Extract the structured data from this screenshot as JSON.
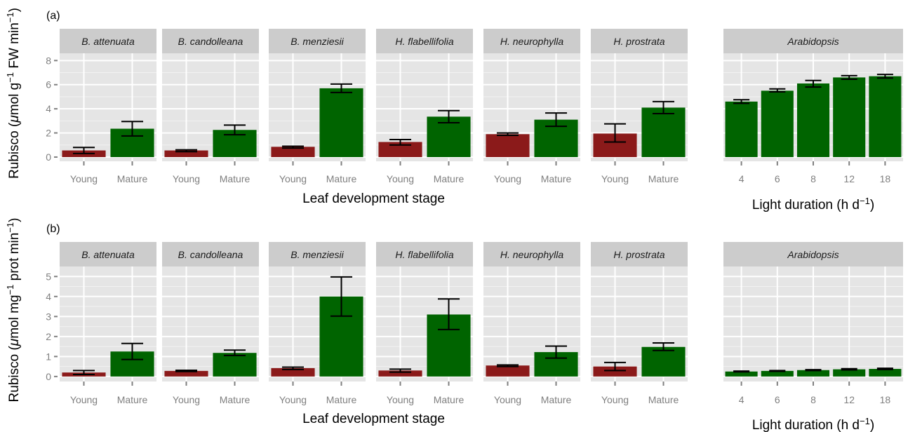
{
  "colors": {
    "young": "#8b1a1a",
    "mature": "#006400",
    "arabidopsis": "#006400"
  },
  "chart_data": [
    {
      "type": "bar",
      "tag": "(a)",
      "ylabel_prefix": "Rubisco (",
      "ylabel_mu": "μ",
      "ylabel_rest": "mol g",
      "ylabel_sup1": "−1",
      "ylabel_mid": " FW min",
      "ylabel_sup2": "−1",
      "ylabel_end": ")",
      "ylim": [
        -0.35,
        8.6
      ],
      "yticks": [
        0,
        2,
        4,
        6,
        8
      ],
      "xlabel": "Leaf development stage",
      "xlabel2_prefix": "Light duration (h d",
      "xlabel2_sup": "−1",
      "xlabel2_end": ")",
      "species_facets": [
        {
          "name": "B. attenuata",
          "categories": [
            "Young",
            "Mature"
          ],
          "values": [
            0.55,
            2.35
          ],
          "err_low": [
            0.3,
            1.75
          ],
          "err_high": [
            0.8,
            2.95
          ]
        },
        {
          "name": "B. candolleana",
          "categories": [
            "Young",
            "Mature"
          ],
          "values": [
            0.55,
            2.25
          ],
          "err_low": [
            0.45,
            1.85
          ],
          "err_high": [
            0.6,
            2.65
          ]
        },
        {
          "name": "B. menziesii",
          "categories": [
            "Young",
            "Mature"
          ],
          "values": [
            0.85,
            5.7
          ],
          "err_low": [
            0.75,
            5.35
          ],
          "err_high": [
            0.9,
            6.05
          ]
        },
        {
          "name": "H. flabellifolia",
          "categories": [
            "Young",
            "Mature"
          ],
          "values": [
            1.25,
            3.35
          ],
          "err_low": [
            1.0,
            2.85
          ],
          "err_high": [
            1.45,
            3.85
          ]
        },
        {
          "name": "H. neurophylla",
          "categories": [
            "Young",
            "Mature"
          ],
          "values": [
            1.9,
            3.1
          ],
          "err_low": [
            1.8,
            2.55
          ],
          "err_high": [
            2.0,
            3.65
          ]
        },
        {
          "name": "H. prostrata",
          "categories": [
            "Young",
            "Mature"
          ],
          "values": [
            1.95,
            4.1
          ],
          "err_low": [
            1.25,
            3.6
          ],
          "err_high": [
            2.75,
            4.6
          ]
        }
      ],
      "arabidopsis_facet": {
        "name": "Arabidopsis",
        "categories": [
          "4",
          "6",
          "8",
          "12",
          "18"
        ],
        "values": [
          4.6,
          5.5,
          6.1,
          6.6,
          6.7
        ],
        "err_low": [
          4.45,
          5.4,
          5.8,
          6.45,
          6.55
        ],
        "err_high": [
          4.75,
          5.65,
          6.35,
          6.75,
          6.85
        ]
      }
    },
    {
      "type": "bar",
      "tag": "(b)",
      "ylabel_prefix": "Rubisco (",
      "ylabel_mu": "μ",
      "ylabel_rest": "mol mg",
      "ylabel_sup1": "−1",
      "ylabel_mid": " prot min",
      "ylabel_sup2": "−1",
      "ylabel_end": ")",
      "ylim": [
        -0.25,
        5.5
      ],
      "yticks": [
        0,
        1,
        2,
        3,
        4,
        5
      ],
      "xlabel": "Leaf development stage",
      "xlabel2_prefix": "Light duration (h d",
      "xlabel2_sup": "−1",
      "xlabel2_end": ")",
      "species_facets": [
        {
          "name": "B. attenuata",
          "categories": [
            "Young",
            "Mature"
          ],
          "values": [
            0.2,
            1.25
          ],
          "err_low": [
            0.1,
            0.85
          ],
          "err_high": [
            0.3,
            1.65
          ]
        },
        {
          "name": "B. candolleana",
          "categories": [
            "Young",
            "Mature"
          ],
          "values": [
            0.28,
            1.18
          ],
          "err_low": [
            0.25,
            1.05
          ],
          "err_high": [
            0.31,
            1.32
          ]
        },
        {
          "name": "B. menziesii",
          "categories": [
            "Young",
            "Mature"
          ],
          "values": [
            0.42,
            4.0
          ],
          "err_low": [
            0.35,
            3.02
          ],
          "err_high": [
            0.47,
            4.98
          ]
        },
        {
          "name": "H. flabellifolia",
          "categories": [
            "Young",
            "Mature"
          ],
          "values": [
            0.3,
            3.1
          ],
          "err_low": [
            0.22,
            2.35
          ],
          "err_high": [
            0.37,
            3.88
          ]
        },
        {
          "name": "H. neurophylla",
          "categories": [
            "Young",
            "Mature"
          ],
          "values": [
            0.55,
            1.22
          ],
          "err_low": [
            0.5,
            0.92
          ],
          "err_high": [
            0.58,
            1.52
          ]
        },
        {
          "name": "H. prostrata",
          "categories": [
            "Young",
            "Mature"
          ],
          "values": [
            0.5,
            1.48
          ],
          "err_low": [
            0.3,
            1.3
          ],
          "err_high": [
            0.7,
            1.68
          ]
        }
      ],
      "arabidopsis_facet": {
        "name": "Arabidopsis",
        "categories": [
          "4",
          "6",
          "8",
          "12",
          "18"
        ],
        "values": [
          0.25,
          0.28,
          0.32,
          0.36,
          0.38
        ],
        "err_low": [
          0.23,
          0.26,
          0.3,
          0.33,
          0.35
        ],
        "err_high": [
          0.27,
          0.3,
          0.34,
          0.39,
          0.41
        ]
      }
    }
  ]
}
